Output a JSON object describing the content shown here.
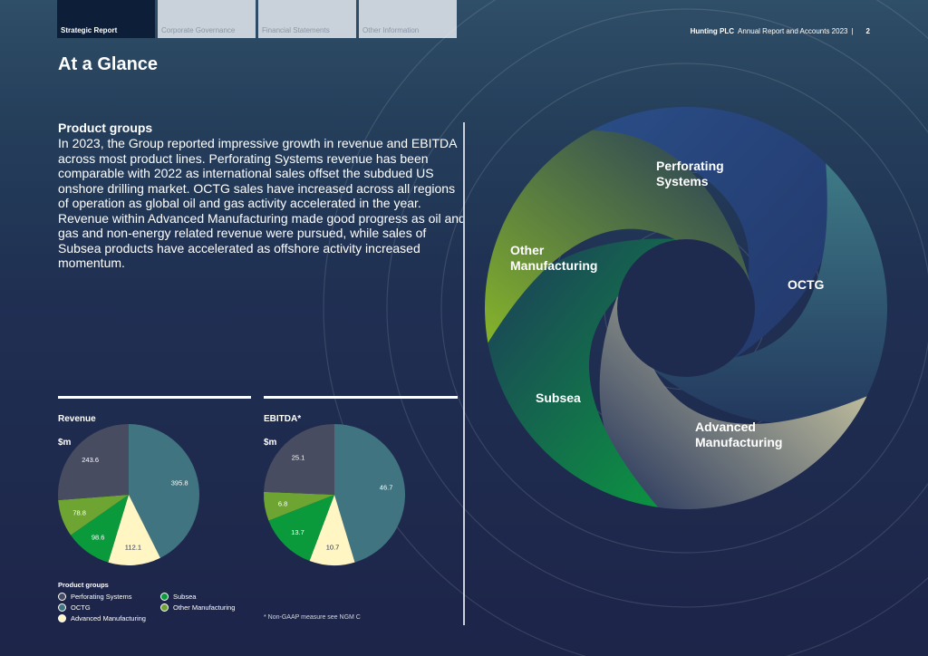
{
  "nav": {
    "tabs": [
      {
        "label": "Strategic Report"
      },
      {
        "label": "Corporate Governance"
      },
      {
        "label": "Financial Statements"
      },
      {
        "label": "Other Information"
      }
    ]
  },
  "header": {
    "brand": "Hunting PLC",
    "report": "Annual Report and Accounts 2023",
    "separator": "|",
    "page_number": "2"
  },
  "page_title": "At a Glance",
  "product_groups": {
    "heading": "Product groups",
    "body": "In 2023, the Group reported impressive growth in revenue and EBITDA across most product lines. Perforating Systems revenue has been comparable with 2022 as international sales offset the subdued US onshore drilling market. OCTG sales have increased across all regions of operation as global oil and gas activity accelerated in the year. Revenue within Advanced Manufacturing made good progress as oil and gas and non-energy related revenue were pursued, while sales of Subsea products have accelerated as offshore activity increased momentum."
  },
  "colors": {
    "perforating_systems": "#484c60",
    "octg": "#3f7480",
    "advanced_manufacturing": "#fff6c4",
    "subsea": "#0a9a3c",
    "other_manufacturing": "#6ea532"
  },
  "chart_data": [
    {
      "type": "pie",
      "title": "Revenue",
      "unit": "$m",
      "slices": [
        {
          "name": "OCTG",
          "value": 395.8,
          "label": "395.8"
        },
        {
          "name": "Advanced Manufacturing",
          "value": 112.1,
          "label": "112.1"
        },
        {
          "name": "Subsea",
          "value": 98.6,
          "label": "98.6"
        },
        {
          "name": "Other Manufacturing",
          "value": 78.8,
          "label": "78.8"
        },
        {
          "name": "Perforating Systems",
          "value": 243.6,
          "label": "243.6"
        }
      ]
    },
    {
      "type": "pie",
      "title": "EBITDA*",
      "unit": "$m",
      "slices": [
        {
          "name": "OCTG",
          "value": 46.7,
          "label": "46.7"
        },
        {
          "name": "Advanced Manufacturing",
          "value": 10.7,
          "label": "10.7"
        },
        {
          "name": "Subsea",
          "value": 13.7,
          "label": "13.7"
        },
        {
          "name": "Other Manufacturing",
          "value": 6.8,
          "label": "6.8"
        },
        {
          "name": "Perforating Systems",
          "value": 25.1,
          "label": "25.1"
        }
      ]
    }
  ],
  "legend": {
    "title": "Product groups",
    "items": [
      {
        "label": "Perforating Systems"
      },
      {
        "label": "OCTG"
      },
      {
        "label": "Advanced Manufacturing"
      },
      {
        "label": "Subsea"
      },
      {
        "label": "Other Manufacturing"
      }
    ]
  },
  "footnote": "* Non-GAAP measure see NGM C",
  "graphic": {
    "labels": {
      "perforating_systems": "Perforating\nSystems",
      "octg": "OCTG",
      "advanced_manufacturing": "Advanced\nManufacturing",
      "subsea": "Subsea",
      "other_manufacturing": "Other\nManufacturing"
    }
  }
}
